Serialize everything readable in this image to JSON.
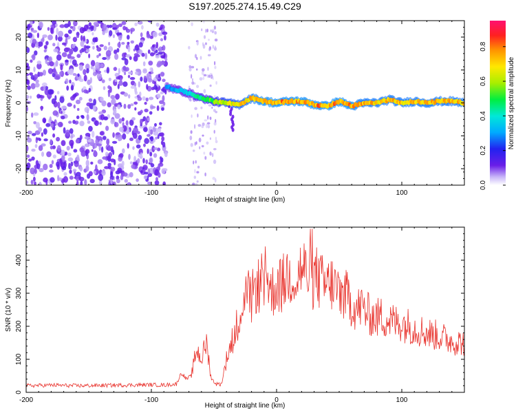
{
  "chart_data": [
    {
      "type": "heatmap",
      "title": "S197.2025.274.15.49.C29",
      "xlabel": "Height of straight line (km)",
      "ylabel": "Frequency (Hz)",
      "xlim": [
        -200,
        150
      ],
      "ylim": [
        -25,
        25
      ],
      "xticks": [
        -200,
        -100,
        0,
        100
      ],
      "yticks": [
        -20,
        -10,
        0,
        10,
        20
      ],
      "colorbar": {
        "label": "Normalized spectral amplitude",
        "range": [
          0,
          0.95
        ],
        "ticks": [
          "0.0",
          "0.2",
          "0.4",
          "0.6",
          "0.8"
        ],
        "tick_values": [
          0.0,
          0.2,
          0.4,
          0.6,
          0.8
        ]
      },
      "noise_region_km": [
        -200,
        -88
      ],
      "signal_trace": {
        "x": [
          -88,
          -80,
          -70,
          -60,
          -50,
          -40,
          -30,
          -20,
          -10,
          0,
          10,
          20,
          30,
          40,
          50,
          60,
          70,
          80,
          90,
          100,
          110,
          120,
          130,
          140,
          150
        ],
        "y": [
          5,
          4,
          3,
          1.5,
          0.5,
          0,
          -0.5,
          1.5,
          0.5,
          0,
          0.5,
          0.5,
          -0.5,
          -1,
          0.5,
          -1,
          0,
          0,
          1,
          0,
          0.5,
          0,
          0.5,
          0.5,
          0
        ],
        "amplitude": [
          0.3,
          0.35,
          0.4,
          0.5,
          0.6,
          0.7,
          0.75,
          0.8,
          0.85,
          0.85,
          0.85,
          0.85,
          0.85,
          0.85,
          0.85,
          0.85,
          0.8,
          0.8,
          0.8,
          0.8,
          0.8,
          0.8,
          0.8,
          0.8,
          0.8
        ]
      }
    },
    {
      "type": "line",
      "xlabel": "Height of straight line (km)",
      "ylabel": "SNR (10 * v/v)",
      "xlim": [
        -200,
        150
      ],
      "ylim": [
        0,
        500
      ],
      "xticks": [
        -200,
        -100,
        0,
        100
      ],
      "yticks": [
        0,
        100,
        200,
        300,
        400
      ],
      "series": [
        {
          "name": "SNR",
          "color": "#e8302a",
          "x": [
            -200,
            -180,
            -160,
            -140,
            -120,
            -100,
            -90,
            -80,
            -76,
            -72,
            -68,
            -64,
            -60,
            -56,
            -52,
            -48,
            -44,
            -40,
            -36,
            -32,
            -28,
            -24,
            -20,
            -16,
            -12,
            -8,
            -4,
            0,
            4,
            8,
            12,
            16,
            20,
            24,
            28,
            32,
            36,
            40,
            44,
            48,
            52,
            56,
            60,
            64,
            68,
            72,
            76,
            80,
            84,
            88,
            92,
            96,
            100,
            110,
            120,
            130,
            140,
            150
          ],
          "y": [
            20,
            22,
            20,
            21,
            22,
            23,
            22,
            25,
            60,
            40,
            50,
            130,
            100,
            150,
            40,
            25,
            25,
            100,
            150,
            200,
            260,
            300,
            280,
            330,
            310,
            360,
            300,
            330,
            320,
            350,
            360,
            340,
            380,
            360,
            340,
            350,
            330,
            320,
            330,
            310,
            300,
            290,
            270,
            250,
            260,
            240,
            230,
            225,
            230,
            220,
            215,
            210,
            210,
            195,
            180,
            170,
            155,
            150
          ]
        }
      ]
    }
  ]
}
